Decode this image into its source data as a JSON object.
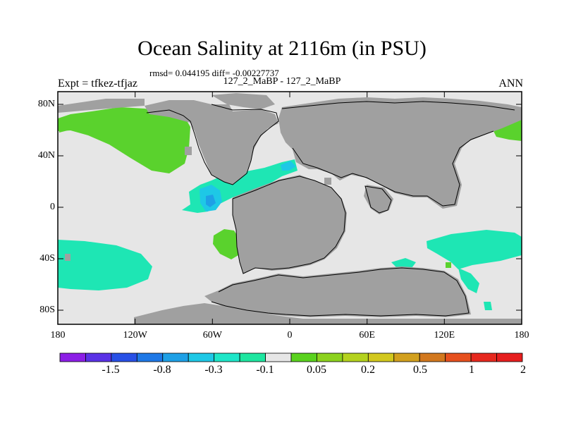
{
  "title": "Ocean Salinity at 2116m (in PSU)",
  "stats_line": "rmsd= 0.044195 diff= -0.00227737",
  "comparison_line": "127_2_MaBP - 127_2_MaBP",
  "experiment_label": "Expt = tfkez-tfjaz",
  "season_label": "ANN",
  "lon_ticks": [
    "180",
    "120W",
    "60W",
    "0",
    "60E",
    "120E",
    "180"
  ],
  "lat_ticks": [
    "80N",
    "40N",
    "0",
    "40S",
    "80S"
  ],
  "colorbar": {
    "labels": [
      "-1.5",
      "-0.8",
      "-0.3",
      "-0.1",
      "0.05",
      "0.2",
      "0.5",
      "1",
      "2"
    ],
    "colors": [
      "#8c1ee6",
      "#5a32e6",
      "#2850e6",
      "#1e78e6",
      "#1ea0e6",
      "#1ec8e6",
      "#1ee6c8",
      "#1ee6a0",
      "#e6e6e6",
      "#5ad21e",
      "#8cd21e",
      "#b4d21e",
      "#d2c81e",
      "#d2a01e",
      "#d2781e",
      "#e6501e",
      "#e6281e",
      "#e61e1e"
    ]
  },
  "map_colors": {
    "land": "#a0a0a0",
    "neutral": "#e6e6e6",
    "green_positive": "#5ad22d",
    "teal_negative": "#1ee6b4",
    "cyan_negative": "#1ec8e6",
    "blue_negative": "#1ea0e6"
  }
}
